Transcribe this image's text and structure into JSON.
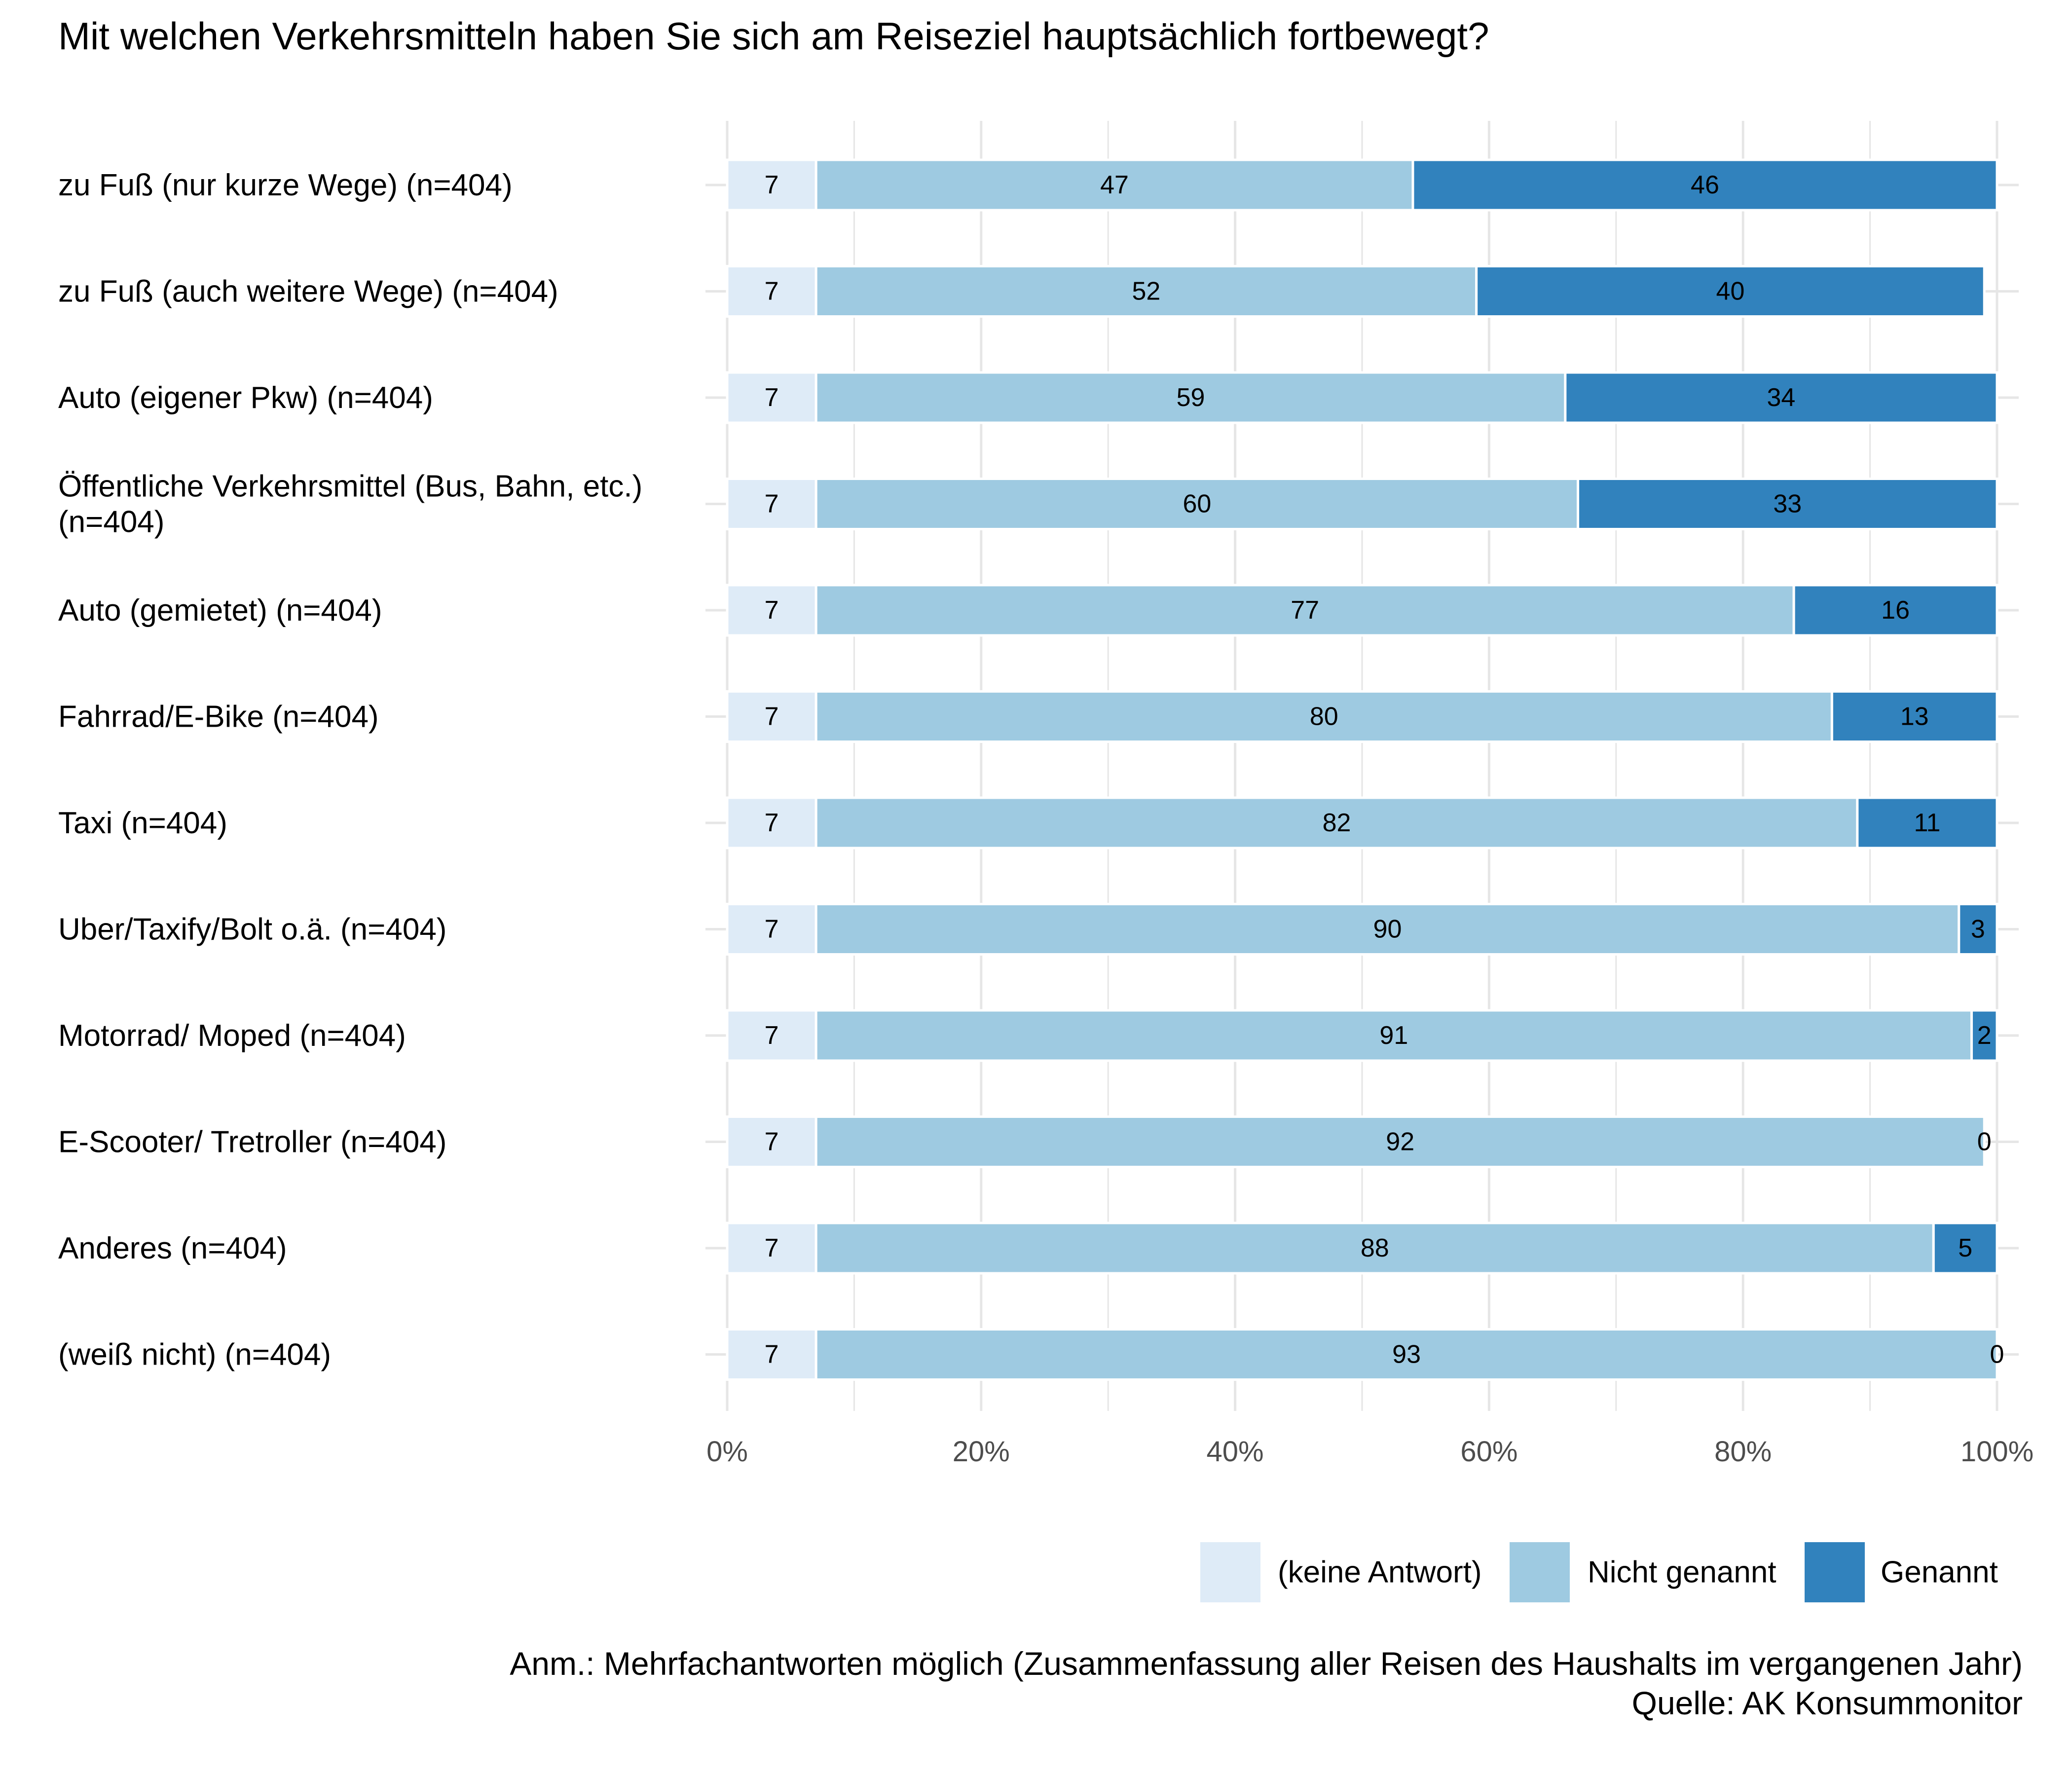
{
  "chart_data": {
    "type": "bar",
    "orientation": "horizontal",
    "stacked": true,
    "title": "Mit welchen Verkehrsmitteln haben Sie sich am Reiseziel hauptsächlich fortbewegt?",
    "categories": [
      [
        "zu Fuß (nur kurze Wege) (n=404)"
      ],
      [
        "zu Fuß (auch weitere Wege) (n=404)"
      ],
      [
        "Auto (eigener Pkw) (n=404)"
      ],
      [
        "Öffentliche Verkehrsmittel (Bus, Bahn, etc.)",
        "(n=404)"
      ],
      [
        "Auto (gemietet) (n=404)"
      ],
      [
        "Fahrrad/E-Bike (n=404)"
      ],
      [
        "Taxi (n=404)"
      ],
      [
        "Uber/Taxify/Bolt o.ä. (n=404)"
      ],
      [
        "Motorrad/ Moped (n=404)"
      ],
      [
        "E-Scooter/ Tretroller (n=404)"
      ],
      [
        "Anderes (n=404)"
      ],
      [
        "(weiß nicht) (n=404)"
      ]
    ],
    "series": [
      {
        "name": "(keine Antwort)",
        "color": "#deebf7",
        "values": [
          7,
          7,
          7,
          7,
          7,
          7,
          7,
          7,
          7,
          7,
          7,
          7
        ]
      },
      {
        "name": "Nicht genannt",
        "color": "#9ecae1",
        "values": [
          47,
          52,
          59,
          60,
          77,
          80,
          82,
          90,
          91,
          92,
          88,
          93
        ]
      },
      {
        "name": "Genannt",
        "color": "#3182bd",
        "values": [
          46,
          40,
          34,
          33,
          16,
          13,
          11,
          3,
          2,
          0,
          5,
          0
        ]
      }
    ],
    "xlim": [
      0,
      100
    ],
    "xticks": [
      0,
      20,
      40,
      60,
      80,
      100
    ],
    "xtick_labels": [
      "0%",
      "20%",
      "40%",
      "60%",
      "80%",
      "100%"
    ],
    "grid": true,
    "legend_position": "bottom-right",
    "note": "Anm.: Mehrfachantworten möglich (Zusammenfassung aller Reisen des Haushalts im vergangenen Jahr)",
    "source": "Quelle: AK Konsummonitor"
  }
}
